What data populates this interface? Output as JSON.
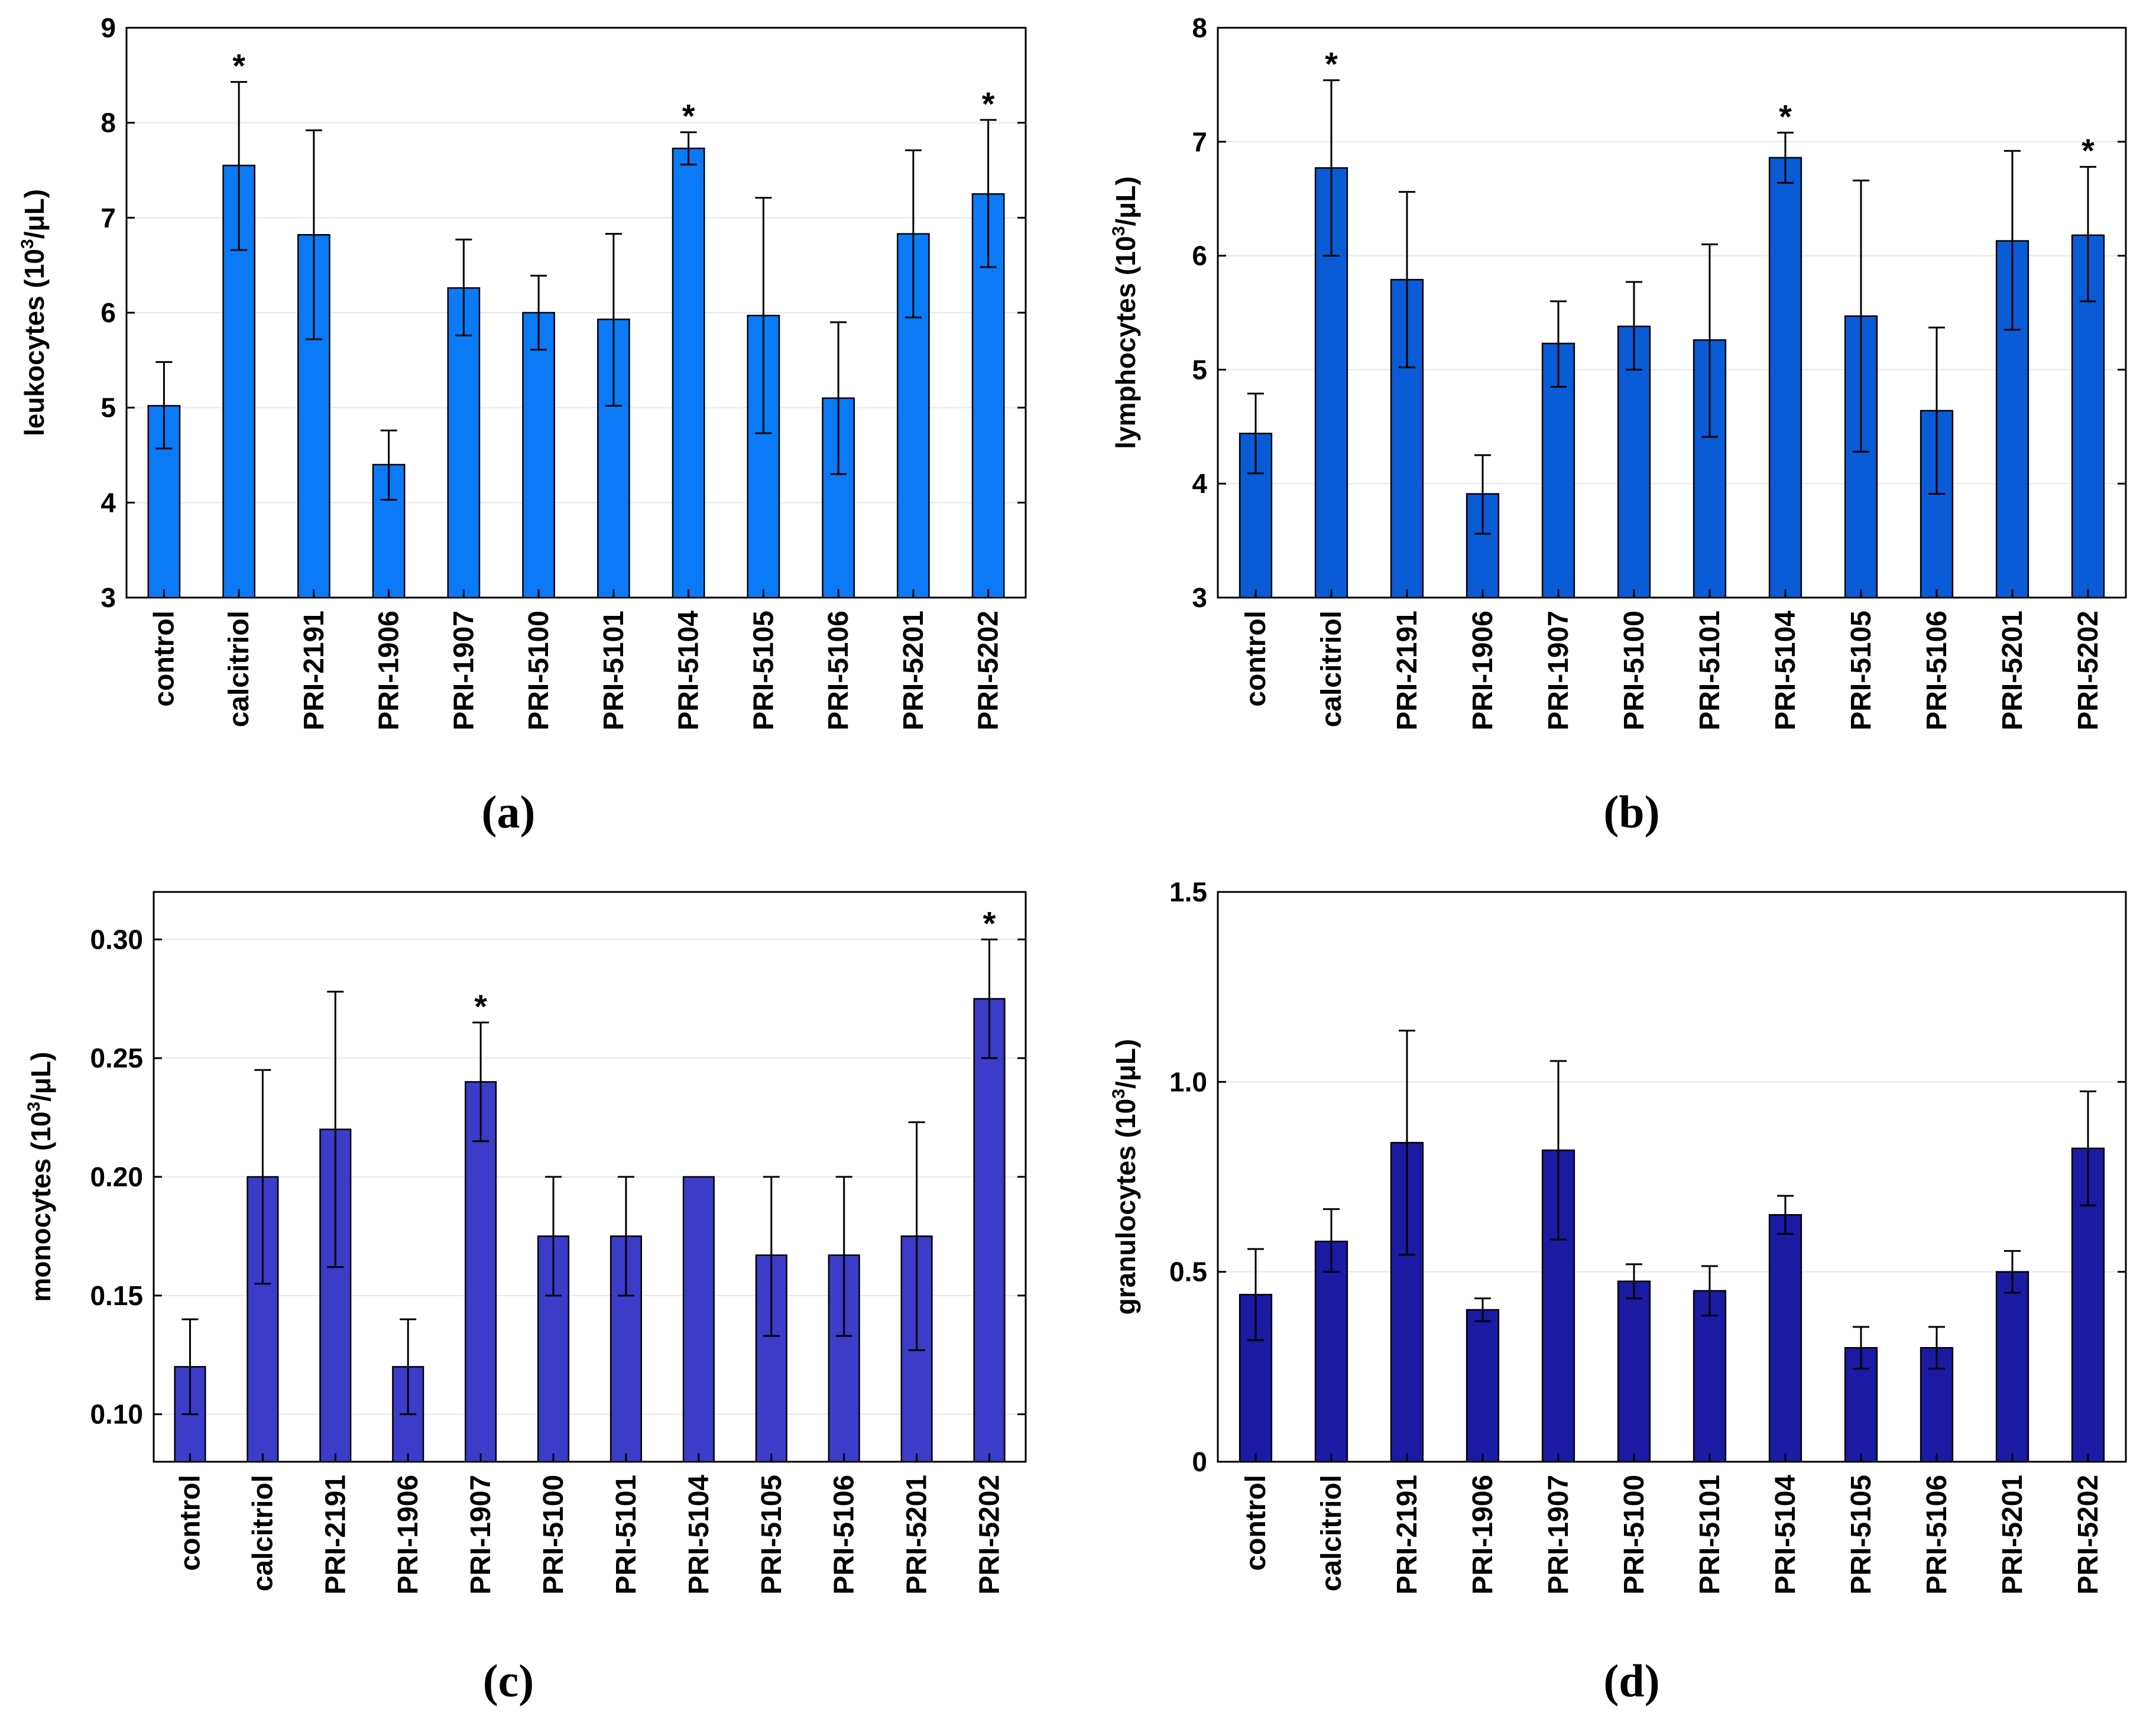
{
  "chart_data": [
    {
      "type": "bar",
      "panel_label": "(a)",
      "ylabel": {
        "main": "leukocytes (10",
        "sup": "3",
        "tail": "/μL)"
      },
      "ylim": [
        3,
        9
      ],
      "yticks": [
        "3",
        "4",
        "5",
        "6",
        "7",
        "8",
        "9"
      ],
      "ytick_values": [
        3,
        4,
        5,
        6,
        7,
        8,
        9
      ],
      "color": "#0A7AF7",
      "categories": [
        "control",
        "calcitriol",
        "PRI-2191",
        "PRI-1906",
        "PRI-1907",
        "PRI-5100",
        "PRI-5101",
        "PRI-5104",
        "PRI-5105",
        "PRI-5106",
        "PRI-5201",
        "PRI-5202"
      ],
      "values": [
        5.02,
        7.55,
        6.82,
        4.4,
        6.26,
        6.0,
        5.93,
        7.73,
        5.97,
        5.1,
        6.83,
        7.25
      ],
      "err_low": [
        4.57,
        6.66,
        5.72,
        4.03,
        5.76,
        5.61,
        5.02,
        7.56,
        4.73,
        4.3,
        5.95,
        6.48
      ],
      "err_high": [
        5.48,
        8.43,
        7.92,
        4.76,
        6.77,
        6.39,
        6.83,
        7.9,
        7.21,
        5.9,
        7.71,
        8.03
      ],
      "significant": [
        false,
        true,
        false,
        false,
        false,
        false,
        false,
        true,
        false,
        false,
        false,
        true
      ],
      "sig_label": "*"
    },
    {
      "type": "bar",
      "panel_label": "(b)",
      "ylabel": {
        "main": "lymphocytes (10",
        "sup": "3",
        "tail": "/μL)"
      },
      "ylim": [
        3,
        8
      ],
      "yticks": [
        "3",
        "4",
        "5",
        "6",
        "7",
        "8"
      ],
      "ytick_values": [
        3,
        4,
        5,
        6,
        7,
        8
      ],
      "color": "#0A5BD6",
      "categories": [
        "control",
        "calcitriol",
        "PRI-2191",
        "PRI-1906",
        "PRI-1907",
        "PRI-5100",
        "PRI-5101",
        "PRI-5104",
        "PRI-5105",
        "PRI-5106",
        "PRI-5201",
        "PRI-5202"
      ],
      "values": [
        4.44,
        6.77,
        5.79,
        3.91,
        5.23,
        5.38,
        5.26,
        6.86,
        5.47,
        4.64,
        6.13,
        6.18
      ],
      "err_low": [
        4.09,
        6.0,
        5.02,
        3.56,
        4.85,
        5.0,
        4.41,
        6.64,
        4.28,
        3.91,
        5.35,
        5.6
      ],
      "err_high": [
        4.79,
        7.54,
        6.56,
        4.25,
        5.6,
        5.77,
        6.1,
        7.08,
        6.66,
        5.37,
        6.92,
        6.78
      ],
      "significant": [
        false,
        true,
        false,
        false,
        false,
        false,
        false,
        true,
        false,
        false,
        false,
        true
      ],
      "sig_label": "*"
    },
    {
      "type": "bar",
      "panel_label": "(c)",
      "ylabel": {
        "main": "monocytes (10",
        "sup": "3",
        "tail": "/μL)"
      },
      "ylim": [
        0.08,
        0.32
      ],
      "yticks": [
        "0.10",
        "0.15",
        "0.20",
        "0.25",
        "0.30"
      ],
      "ytick_values": [
        0.1,
        0.15,
        0.2,
        0.25,
        0.3
      ],
      "color": "#3B3CC8",
      "categories": [
        "control",
        "calcitriol",
        "PRI-2191",
        "PRI-1906",
        "PRI-1907",
        "PRI-5100",
        "PRI-5101",
        "PRI-5104",
        "PRI-5105",
        "PRI-5106",
        "PRI-5201",
        "PRI-5202"
      ],
      "values": [
        0.12,
        0.2,
        0.22,
        0.12,
        0.24,
        0.175,
        0.175,
        0.2,
        0.167,
        0.167,
        0.175,
        0.275
      ],
      "err_low": [
        0.1,
        0.155,
        0.162,
        0.1,
        0.215,
        0.15,
        0.15,
        0.2,
        0.133,
        0.133,
        0.127,
        0.25
      ],
      "err_high": [
        0.14,
        0.245,
        0.278,
        0.14,
        0.265,
        0.2,
        0.2,
        0.2,
        0.2,
        0.2,
        0.223,
        0.3
      ],
      "significant": [
        false,
        false,
        false,
        false,
        true,
        false,
        false,
        false,
        false,
        false,
        false,
        true
      ],
      "sig_label": "*"
    },
    {
      "type": "bar",
      "panel_label": "(d)",
      "ylabel": {
        "main": "granulocytes (10",
        "sup": "3",
        "tail": "/μL)"
      },
      "ylim": [
        0,
        1.5
      ],
      "yticks": [
        "0",
        "0.5",
        "1.0",
        "1.5"
      ],
      "ytick_values": [
        0,
        0.5,
        1.0,
        1.5
      ],
      "color": "#1A1AA3",
      "categories": [
        "control",
        "calcitriol",
        "PRI-2191",
        "PRI-1906",
        "PRI-1907",
        "PRI-5100",
        "PRI-5101",
        "PRI-5104",
        "PRI-5105",
        "PRI-5106",
        "PRI-5201",
        "PRI-5202"
      ],
      "values": [
        0.44,
        0.58,
        0.84,
        0.4,
        0.82,
        0.475,
        0.45,
        0.65,
        0.3,
        0.3,
        0.5,
        0.825
      ],
      "err_low": [
        0.32,
        0.5,
        0.545,
        0.37,
        0.585,
        0.43,
        0.385,
        0.6,
        0.245,
        0.245,
        0.445,
        0.675
      ],
      "err_high": [
        0.56,
        0.665,
        1.135,
        0.43,
        1.055,
        0.52,
        0.515,
        0.7,
        0.355,
        0.355,
        0.555,
        0.975
      ],
      "significant": [
        false,
        false,
        false,
        false,
        false,
        false,
        false,
        false,
        false,
        false,
        false,
        false
      ],
      "sig_label": "*"
    }
  ]
}
